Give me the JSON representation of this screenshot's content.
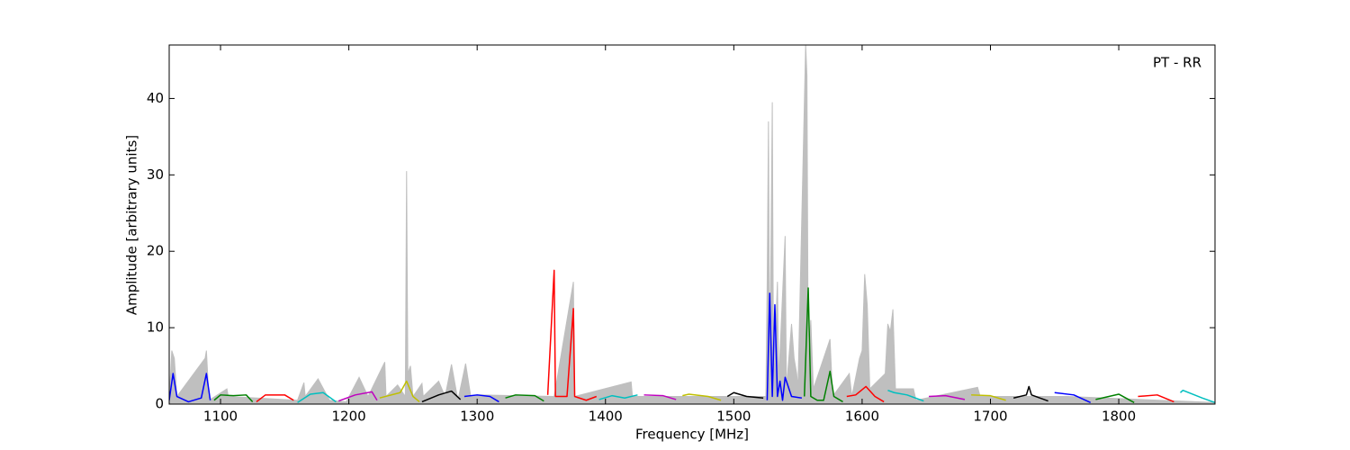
{
  "chart_data": {
    "type": "line",
    "x_label": "Frequency [MHz]",
    "y_label": "Amplitude [arbitrary units]",
    "annotation": "PT - RR",
    "xlim": [
      1060,
      1875
    ],
    "ylim": [
      0,
      47
    ],
    "xticks": [
      1100,
      1200,
      1300,
      1400,
      1500,
      1600,
      1700,
      1800
    ],
    "yticks": [
      0,
      10,
      20,
      30,
      40
    ],
    "series": [
      {
        "color": "#bfbfbf",
        "fill": true,
        "x": [
          1060,
          1062,
          1064,
          1066,
          1088,
          1089,
          1091,
          1105,
          1106,
          1160,
          1165,
          1166,
          1176,
          1185,
          1198,
          1208,
          1215,
          1228,
          1229,
          1238,
          1244,
          1245,
          1246,
          1248,
          1250,
          1257,
          1258,
          1270,
          1275,
          1280,
          1285,
          1291,
          1295,
          1300,
          1360,
          1375,
          1376,
          1420,
          1421,
          1500,
          1525,
          1526,
          1527,
          1528,
          1530,
          1531,
          1534,
          1535,
          1540,
          1541,
          1545,
          1547,
          1549,
          1550,
          1556,
          1557,
          1558,
          1560,
          1562,
          1575,
          1577,
          1590,
          1592,
          1598,
          1600,
          1602,
          1604,
          1606,
          1618,
          1620,
          1622,
          1624,
          1626,
          1640,
          1642,
          1690,
          1692,
          1760,
          1875
        ],
        "values": [
          0.5,
          7,
          6,
          1,
          6,
          7,
          0.5,
          2,
          1,
          0.5,
          2.8,
          1,
          3.3,
          0.5,
          0.3,
          3.5,
          1,
          5.5,
          1,
          2.5,
          1,
          30.5,
          4,
          5,
          1,
          2.7,
          1,
          3,
          1,
          5.2,
          0.5,
          5.3,
          1,
          1.2,
          1,
          16,
          1,
          2.9,
          1,
          1,
          1,
          15.5,
          37,
          3,
          39.5,
          2,
          16,
          3,
          22,
          2,
          10.5,
          6,
          4,
          2,
          47,
          43,
          5,
          11,
          2,
          8.5,
          1,
          4,
          1,
          6,
          7,
          17,
          13,
          2,
          4,
          10.5,
          9.5,
          12.4,
          2,
          2,
          0.5,
          2.2,
          1,
          1,
          0.2
        ]
      },
      {
        "color": "#0000ff",
        "x": [
          1060,
          1063,
          1066,
          1075,
          1085,
          1089,
          1092
        ],
        "values": [
          0.5,
          4,
          1,
          0.3,
          0.8,
          4,
          0.5
        ]
      },
      {
        "color": "#008000",
        "x": [
          1095,
          1100,
          1110,
          1120,
          1125
        ],
        "values": [
          0.5,
          1.2,
          1.1,
          1.2,
          0.3
        ]
      },
      {
        "color": "#ff0000",
        "x": [
          1128,
          1135,
          1150,
          1157
        ],
        "values": [
          0.3,
          1.2,
          1.2,
          0.5
        ]
      },
      {
        "color": "#00bfbf",
        "x": [
          1160,
          1170,
          1180,
          1190
        ],
        "values": [
          0.2,
          1.3,
          1.5,
          0.3
        ]
      },
      {
        "color": "#bf00bf",
        "x": [
          1192,
          1205,
          1218,
          1222
        ],
        "values": [
          0.4,
          1.2,
          1.6,
          0.5
        ]
      },
      {
        "color": "#bfbf00",
        "x": [
          1224,
          1240,
          1245,
          1250,
          1255
        ],
        "values": [
          0.8,
          1.5,
          3,
          1,
          0.3
        ]
      },
      {
        "color": "#000000",
        "x": [
          1257,
          1270,
          1280,
          1287
        ],
        "values": [
          0.3,
          1.2,
          1.7,
          0.6
        ]
      },
      {
        "color": "#0000ff",
        "x": [
          1290,
          1300,
          1310,
          1317
        ],
        "values": [
          1,
          1.2,
          1,
          0.3
        ]
      },
      {
        "color": "#008000",
        "x": [
          1322,
          1330,
          1345,
          1352
        ],
        "values": [
          0.8,
          1.2,
          1.1,
          0.4
        ]
      },
      {
        "color": "#ff0000",
        "x": [
          1355,
          1360,
          1361,
          1370,
          1375,
          1376,
          1385,
          1393
        ],
        "values": [
          1.2,
          17.5,
          1,
          1,
          12.5,
          1,
          0.5,
          1
        ]
      },
      {
        "color": "#00bfbf",
        "x": [
          1395,
          1405,
          1415,
          1425
        ],
        "values": [
          0.6,
          1.1,
          0.8,
          1.2
        ]
      },
      {
        "color": "#bf00bf",
        "x": [
          1430,
          1445,
          1455
        ],
        "values": [
          1.2,
          1.1,
          0.6
        ]
      },
      {
        "color": "#bfbf00",
        "x": [
          1460,
          1465,
          1480,
          1490
        ],
        "values": [
          1.1,
          1.3,
          1,
          0.5
        ]
      },
      {
        "color": "#000000",
        "x": [
          1495,
          1500,
          1510,
          1523
        ],
        "values": [
          1,
          1.5,
          1,
          0.8
        ]
      },
      {
        "color": "#0000ff",
        "x": [
          1526,
          1528,
          1530,
          1532,
          1534,
          1536,
          1538,
          1540,
          1545,
          1553
        ],
        "values": [
          0.5,
          14.5,
          1,
          13,
          1,
          3,
          0.5,
          3.5,
          1,
          0.8
        ]
      },
      {
        "color": "#008000",
        "x": [
          1555,
          1558,
          1560,
          1565,
          1570,
          1575,
          1578,
          1585
        ],
        "values": [
          1,
          15.2,
          1,
          0.5,
          0.5,
          4.3,
          1,
          0.3
        ]
      },
      {
        "color": "#ff0000",
        "x": [
          1588,
          1595,
          1603,
          1610,
          1617
        ],
        "values": [
          1,
          1.2,
          2.3,
          1,
          0.3
        ]
      },
      {
        "color": "#00bfbf",
        "x": [
          1620,
          1625,
          1635,
          1648
        ],
        "values": [
          1.8,
          1.5,
          1.2,
          0.4
        ]
      },
      {
        "color": "#bf00bf",
        "x": [
          1652,
          1665,
          1680
        ],
        "values": [
          1,
          1.1,
          0.6
        ]
      },
      {
        "color": "#bfbf00",
        "x": [
          1685,
          1700,
          1712
        ],
        "values": [
          1.2,
          1.1,
          0.5
        ]
      },
      {
        "color": "#000000",
        "x": [
          1718,
          1728,
          1730,
          1732,
          1745
        ],
        "values": [
          0.8,
          1.2,
          2.3,
          1.2,
          0.4
        ]
      },
      {
        "color": "#0000ff",
        "x": [
          1750,
          1765,
          1778
        ],
        "values": [
          1.5,
          1.2,
          0.2
        ]
      },
      {
        "color": "#008000",
        "x": [
          1782,
          1800,
          1812
        ],
        "values": [
          0.6,
          1.3,
          0.2
        ]
      },
      {
        "color": "#ff0000",
        "x": [
          1815,
          1830,
          1843
        ],
        "values": [
          1,
          1.2,
          0.3
        ]
      },
      {
        "color": "#00bfbf",
        "x": [
          1848,
          1850,
          1865,
          1875
        ],
        "values": [
          1.5,
          1.8,
          0.8,
          0.2
        ]
      }
    ]
  }
}
